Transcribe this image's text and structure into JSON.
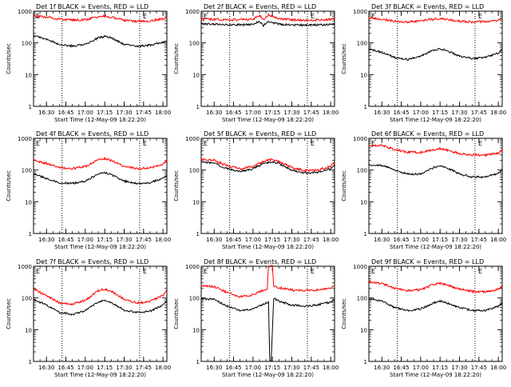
{
  "figure": {
    "colors": {
      "events": "#000000",
      "lld": "#ff0000",
      "axes": "#000000",
      "marker": "#000000"
    },
    "start_time": "Start Time (12-May-09 18:22:20)"
  },
  "chart_data": [
    {
      "type": "line",
      "title": "Det 1f BLACK = Events, RED = LLD",
      "xlabel": "Start Time (12-May-09 18:22:20)",
      "ylabel": "Counts/sec",
      "yscale": "log",
      "ylim": [
        1,
        1000
      ],
      "yticks": [
        "1",
        "10",
        "100",
        "1000"
      ],
      "xlim": [
        "16:20",
        "18:03"
      ],
      "xticks": [
        "16:30",
        "16:45",
        "17:00",
        "17:15",
        "17:30",
        "17:45",
        "18:00"
      ],
      "marker_lines": [
        "16:42",
        "17:42"
      ],
      "marker_labels": [
        "E",
        "E"
      ],
      "series": [
        {
          "color": "#000000",
          "x": [
            "16:20",
            "16:30",
            "16:40",
            "16:50",
            "17:00",
            "17:10",
            "17:15",
            "17:20",
            "17:30",
            "17:40",
            "17:50",
            "18:00",
            "18:03"
          ],
          "values": [
            170,
            130,
            90,
            80,
            88,
            145,
            160,
            145,
            90,
            78,
            85,
            105,
            115
          ]
        },
        {
          "color": "#ff0000",
          "x": [
            "16:20",
            "16:30",
            "16:40",
            "16:50",
            "17:00",
            "17:10",
            "17:15",
            "17:20",
            "17:30",
            "17:40",
            "17:50",
            "18:00",
            "18:03"
          ],
          "values": [
            720,
            650,
            560,
            520,
            540,
            660,
            700,
            650,
            520,
            480,
            500,
            570,
            640
          ]
        }
      ]
    },
    {
      "type": "line",
      "title": "Det 2f BLACK = Events, RED = LLD",
      "xlabel": "Start Time (12-May-09 18:22:20)",
      "ylabel": "Counts/sec",
      "yscale": "log",
      "ylim": [
        1,
        1000
      ],
      "yticks": [
        "1",
        "10",
        "100",
        "1000"
      ],
      "xlim": [
        "16:20",
        "18:03"
      ],
      "xticks": [
        "16:30",
        "16:45",
        "17:00",
        "17:15",
        "17:30",
        "17:45",
        "18:00"
      ],
      "marker_lines": [
        "16:42",
        "17:42"
      ],
      "marker_labels": [
        "E",
        "E"
      ],
      "series": [
        {
          "color": "#000000",
          "x": [
            "16:20",
            "16:30",
            "16:40",
            "16:50",
            "17:00",
            "17:05",
            "17:08",
            "17:12",
            "17:20",
            "17:30",
            "17:40",
            "17:50",
            "18:00",
            "18:03"
          ],
          "values": [
            400,
            390,
            380,
            370,
            380,
            480,
            350,
            470,
            390,
            370,
            360,
            370,
            380,
            380
          ]
        },
        {
          "color": "#ff0000",
          "x": [
            "16:20",
            "16:30",
            "16:40",
            "16:50",
            "17:00",
            "17:05",
            "17:08",
            "17:12",
            "17:20",
            "17:30",
            "17:40",
            "17:50",
            "18:00",
            "18:03"
          ],
          "values": [
            560,
            550,
            540,
            530,
            560,
            760,
            520,
            780,
            570,
            540,
            520,
            530,
            550,
            560
          ]
        }
      ]
    },
    {
      "type": "line",
      "title": "Det 3f BLACK = Events, RED = LLD",
      "xlabel": "Start Time (12-May-09 18:22:20)",
      "ylabel": "Counts/sec",
      "yscale": "log",
      "ylim": [
        1,
        1000
      ],
      "yticks": [
        "1",
        "10",
        "100",
        "1000"
      ],
      "xlim": [
        "16:20",
        "18:03"
      ],
      "xticks": [
        "16:30",
        "16:45",
        "17:00",
        "17:15",
        "17:30",
        "17:45",
        "18:00"
      ],
      "marker_lines": [
        "16:42",
        "17:42"
      ],
      "marker_labels": [
        "E",
        "E"
      ],
      "series": [
        {
          "color": "#000000",
          "x": [
            "16:20",
            "16:30",
            "16:40",
            "16:50",
            "17:00",
            "17:10",
            "17:15",
            "17:20",
            "17:30",
            "17:40",
            "17:50",
            "18:00",
            "18:03"
          ],
          "values": [
            65,
            50,
            35,
            30,
            38,
            60,
            65,
            58,
            38,
            32,
            35,
            48,
            62
          ]
        },
        {
          "color": "#ff0000",
          "x": [
            "16:20",
            "16:30",
            "16:40",
            "16:50",
            "17:00",
            "17:10",
            "17:15",
            "17:20",
            "17:30",
            "17:40",
            "17:50",
            "18:00",
            "18:03"
          ],
          "values": [
            620,
            560,
            480,
            460,
            490,
            560,
            590,
            560,
            480,
            460,
            470,
            520,
            560
          ]
        }
      ]
    },
    {
      "type": "line",
      "title": "Det 4f BLACK = Events, RED = LLD",
      "xlabel": "Start Time (12-May-09 18:22:20)",
      "ylabel": "Counts/sec",
      "yscale": "log",
      "ylim": [
        1,
        1000
      ],
      "yticks": [
        "1",
        "10",
        "100",
        "1000"
      ],
      "xlim": [
        "16:20",
        "18:03"
      ],
      "xticks": [
        "16:30",
        "16:45",
        "17:00",
        "17:15",
        "17:30",
        "17:45",
        "18:00"
      ],
      "marker_lines": [
        "16:42",
        "17:42"
      ],
      "marker_labels": [
        "E",
        "E"
      ],
      "series": [
        {
          "color": "#000000",
          "x": [
            "16:20",
            "16:30",
            "16:40",
            "16:50",
            "17:00",
            "17:10",
            "17:15",
            "17:20",
            "17:30",
            "17:40",
            "17:50",
            "18:00",
            "18:03"
          ],
          "values": [
            75,
            55,
            40,
            38,
            45,
            75,
            82,
            72,
            45,
            38,
            40,
            55,
            68
          ]
        },
        {
          "color": "#ff0000",
          "x": [
            "16:20",
            "16:30",
            "16:40",
            "16:50",
            "17:00",
            "17:10",
            "17:15",
            "17:20",
            "17:30",
            "17:40",
            "17:50",
            "18:00",
            "18:03"
          ],
          "values": [
            210,
            160,
            120,
            110,
            130,
            210,
            230,
            200,
            130,
            110,
            115,
            150,
            200
          ]
        }
      ]
    },
    {
      "type": "line",
      "title": "Det 5f BLACK = Events, RED = LLD",
      "xlabel": "Start Time (12-May-09 18:22:20)",
      "ylabel": "Counts/sec",
      "yscale": "log",
      "ylim": [
        1,
        1000
      ],
      "yticks": [
        "1",
        "10",
        "100",
        "1000"
      ],
      "xlim": [
        "16:20",
        "18:03"
      ],
      "xticks": [
        "16:30",
        "16:45",
        "17:00",
        "17:15",
        "17:30",
        "17:45",
        "18:00"
      ],
      "marker_lines": [
        "16:42",
        "17:42"
      ],
      "marker_labels": [
        "E",
        "E"
      ],
      "series": [
        {
          "color": "#000000",
          "x": [
            "16:20",
            "16:30",
            "16:40",
            "16:50",
            "17:00",
            "17:10",
            "17:15",
            "17:20",
            "17:30",
            "17:40",
            "17:50",
            "18:00",
            "18:03"
          ],
          "values": [
            180,
            165,
            110,
            90,
            110,
            170,
            180,
            160,
            100,
            80,
            85,
            110,
            140
          ]
        },
        {
          "color": "#ff0000",
          "x": [
            "16:20",
            "16:30",
            "16:40",
            "16:50",
            "17:00",
            "17:10",
            "17:15",
            "17:20",
            "17:30",
            "17:40",
            "17:50",
            "18:00",
            "18:03"
          ],
          "values": [
            220,
            205,
            135,
            110,
            130,
            200,
            215,
            190,
            120,
            95,
            100,
            130,
            175
          ]
        }
      ]
    },
    {
      "type": "line",
      "title": "Det 6f BLACK = Events, RED = LLD",
      "xlabel": "Start Time (12-May-09 18:22:20)",
      "ylabel": "Counts/sec",
      "yscale": "log",
      "ylim": [
        1,
        1000
      ],
      "yticks": [
        "1",
        "10",
        "100",
        "1000"
      ],
      "xlim": [
        "16:20",
        "18:03"
      ],
      "xticks": [
        "16:30",
        "16:45",
        "17:00",
        "17:15",
        "17:30",
        "17:45",
        "18:00"
      ],
      "marker_lines": [
        "16:42",
        "17:42"
      ],
      "marker_labels": [
        "E",
        "E"
      ],
      "series": [
        {
          "color": "#000000",
          "x": [
            "16:20",
            "16:30",
            "16:40",
            "16:50",
            "17:00",
            "17:10",
            "17:15",
            "17:20",
            "17:30",
            "17:40",
            "17:50",
            "18:00",
            "18:03"
          ],
          "values": [
            140,
            140,
            100,
            75,
            75,
            120,
            140,
            120,
            75,
            60,
            60,
            80,
            105
          ]
        },
        {
          "color": "#ff0000",
          "x": [
            "16:20",
            "16:30",
            "16:40",
            "16:50",
            "17:00",
            "17:10",
            "17:15",
            "17:20",
            "17:30",
            "17:40",
            "17:50",
            "18:00",
            "18:03"
          ],
          "values": [
            580,
            600,
            440,
            360,
            360,
            430,
            470,
            420,
            330,
            300,
            300,
            340,
            410
          ]
        }
      ]
    },
    {
      "type": "line",
      "title": "Det 7f BLACK = Events, RED = LLD",
      "xlabel": "Start Time (12-May-09 18:22:20)",
      "ylabel": "Counts/sec",
      "yscale": "log",
      "ylim": [
        1,
        1000
      ],
      "yticks": [
        "1",
        "10",
        "100",
        "1000"
      ],
      "xlim": [
        "16:20",
        "18:03"
      ],
      "xticks": [
        "16:30",
        "16:45",
        "17:00",
        "17:15",
        "17:30",
        "17:45",
        "18:00"
      ],
      "marker_lines": [
        "16:42",
        "17:42"
      ],
      "marker_labels": [
        "E",
        "E"
      ],
      "series": [
        {
          "color": "#000000",
          "x": [
            "16:20",
            "16:30",
            "16:40",
            "16:50",
            "17:00",
            "17:10",
            "17:15",
            "17:20",
            "17:30",
            "17:40",
            "17:50",
            "18:00",
            "18:03"
          ],
          "values": [
            90,
            60,
            35,
            30,
            40,
            75,
            85,
            72,
            42,
            35,
            38,
            60,
            85
          ]
        },
        {
          "color": "#ff0000",
          "x": [
            "16:20",
            "16:30",
            "16:40",
            "16:50",
            "17:00",
            "17:10",
            "17:15",
            "17:20",
            "17:30",
            "17:40",
            "17:50",
            "18:00",
            "18:03"
          ],
          "values": [
            190,
            120,
            70,
            65,
            85,
            170,
            190,
            165,
            90,
            70,
            78,
            120,
            180
          ]
        }
      ]
    },
    {
      "type": "line",
      "title": "Det 8f BLACK = Events, RED = LLD",
      "xlabel": "Start Time (12-May-09 18:22:20)",
      "ylabel": "Counts/sec",
      "yscale": "log",
      "ylim": [
        1,
        1000
      ],
      "yticks": [
        "1",
        "10",
        "100",
        "1000"
      ],
      "xlim": [
        "16:20",
        "18:03"
      ],
      "xticks": [
        "16:30",
        "16:45",
        "17:00",
        "17:15",
        "17:30",
        "17:45",
        "18:00"
      ],
      "marker_lines": [
        "16:42",
        "17:42"
      ],
      "marker_labels": [
        "E",
        "E"
      ],
      "series": [
        {
          "color": "#000000",
          "x": [
            "16:20",
            "16:30",
            "16:40",
            "16:50",
            "17:00",
            "17:10",
            "17:12",
            "17:13",
            "17:14",
            "17:16",
            "17:20",
            "17:30",
            "17:40",
            "17:50",
            "18:00",
            "18:03"
          ],
          "values": [
            95,
            90,
            55,
            40,
            45,
            70,
            75,
            1,
            1,
            100,
            80,
            60,
            55,
            60,
            75,
            90
          ]
        },
        {
          "color": "#ff0000",
          "x": [
            "16:20",
            "16:30",
            "16:40",
            "16:50",
            "17:00",
            "17:10",
            "17:11",
            "17:12",
            "17:15",
            "17:16",
            "17:20",
            "17:30",
            "17:40",
            "17:50",
            "18:00",
            "18:03"
          ],
          "values": [
            240,
            230,
            150,
            110,
            125,
            190,
            200,
            1000,
            1000,
            240,
            210,
            180,
            170,
            180,
            210,
            240
          ]
        }
      ]
    },
    {
      "type": "line",
      "title": "Det 9f BLACK = Events, RED = LLD",
      "xlabel": "Start Time (12-May-09 18:22:20)",
      "ylabel": "Counts/sec",
      "yscale": "log",
      "ylim": [
        1,
        1000
      ],
      "yticks": [
        "1",
        "10",
        "100",
        "1000"
      ],
      "xlim": [
        "16:20",
        "18:03"
      ],
      "xticks": [
        "16:30",
        "16:45",
        "17:00",
        "17:15",
        "17:30",
        "17:45",
        "18:00"
      ],
      "marker_lines": [
        "16:42",
        "17:42"
      ],
      "marker_labels": [
        "E",
        "E"
      ],
      "series": [
        {
          "color": "#000000",
          "x": [
            "16:20",
            "16:30",
            "16:40",
            "16:50",
            "17:00",
            "17:10",
            "17:15",
            "17:20",
            "17:30",
            "17:40",
            "17:50",
            "18:00",
            "18:03"
          ],
          "values": [
            95,
            80,
            50,
            40,
            45,
            70,
            80,
            70,
            50,
            40,
            40,
            55,
            70
          ]
        },
        {
          "color": "#ff0000",
          "x": [
            "16:20",
            "16:30",
            "16:40",
            "16:50",
            "17:00",
            "17:10",
            "17:15",
            "17:20",
            "17:30",
            "17:40",
            "17:50",
            "18:00",
            "18:03"
          ],
          "values": [
            330,
            290,
            200,
            170,
            180,
            270,
            290,
            260,
            190,
            160,
            155,
            190,
            240
          ]
        }
      ]
    }
  ]
}
